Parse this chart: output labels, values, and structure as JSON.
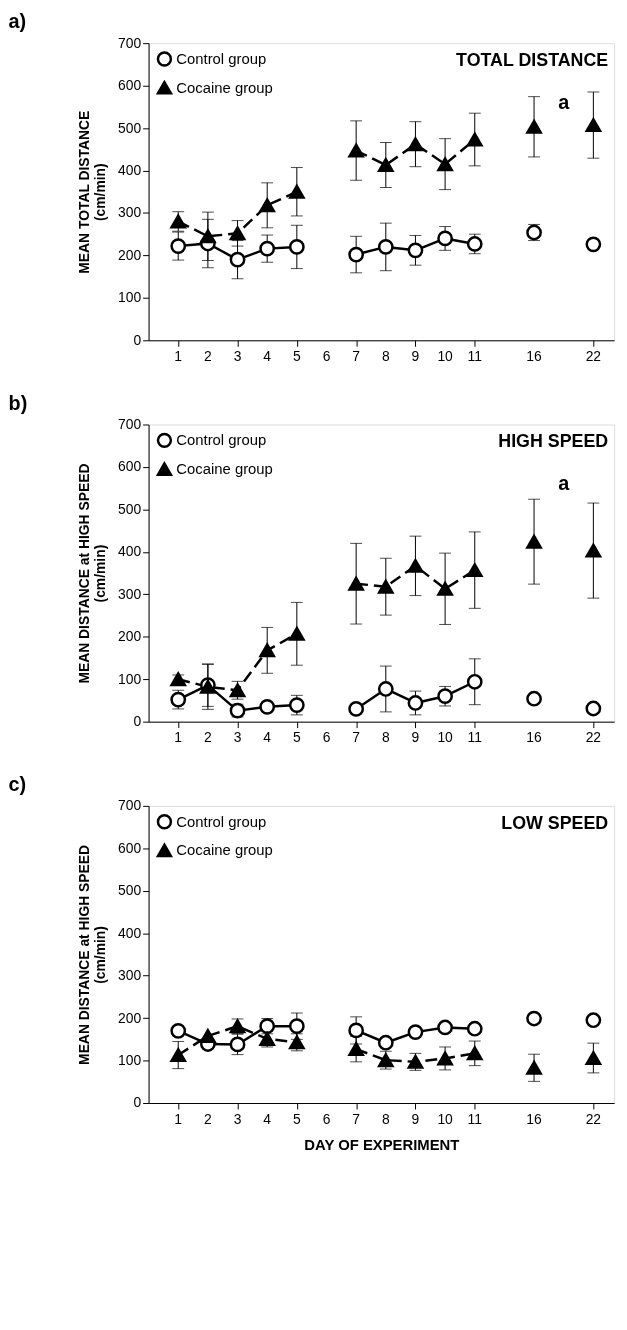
{
  "chart_data": [
    {
      "type": "line",
      "title": "a)",
      "ylabel": "MEAN TOTAL DISTANCE\n(cm/min)",
      "categories": [
        "1",
        "2",
        "3",
        "4",
        "5",
        "6",
        "7",
        "8",
        "9",
        "10",
        "11",
        null,
        "16",
        null,
        "22"
      ],
      "ylim": [
        0,
        700
      ],
      "yticks": [
        0,
        100,
        200,
        300,
        400,
        500,
        600,
        700
      ],
      "legend": "top left",
      "annotations": [
        "TOTAL DISTANCE",
        "a"
      ],
      "series": [
        {
          "name": "Control group",
          "color": "#000000",
          "marker": "circle",
          "line_style": "solid",
          "values": [
            222,
            228,
            190,
            216,
            220,
            null,
            202,
            220,
            212,
            240,
            227,
            null,
            254,
            null,
            226
          ],
          "errors": [
            33,
            57,
            45,
            32,
            51,
            null,
            43,
            56,
            35,
            28,
            23,
            null,
            19,
            null,
            null
          ]
        },
        {
          "name": "Cocaine group",
          "color": "#000000",
          "marker": "triangle",
          "line_style": "dashed",
          "values": [
            280,
            245,
            252,
            318,
            350,
            null,
            447,
            413,
            462,
            415,
            473,
            null,
            503,
            null,
            507
          ],
          "errors": [
            23,
            57,
            30,
            53,
            57,
            null,
            70,
            53,
            53,
            60,
            62,
            null,
            71,
            null,
            78
          ]
        }
      ]
    },
    {
      "type": "line",
      "title": "b)",
      "ylabel": "MEAN DISTANCE at HIGH SPEED\n(cm/min)",
      "categories": [
        "1",
        "2",
        "3",
        "4",
        "5",
        "6",
        "7",
        "8",
        "9",
        "10",
        "11",
        null,
        "16",
        null,
        "22"
      ],
      "ylim": [
        0,
        700
      ],
      "yticks": [
        0,
        100,
        200,
        300,
        400,
        500,
        600,
        700
      ],
      "legend": "top left",
      "annotations": [
        "HIGH SPEED",
        "a"
      ],
      "series": [
        {
          "name": "Control group",
          "color": "#000000",
          "marker": "circle",
          "line_style": "solid",
          "values": [
            52,
            86,
            26,
            35,
            39,
            null,
            30,
            77,
            44,
            60,
            94,
            null,
            54,
            null,
            31
          ],
          "errors": [
            22,
            50,
            15,
            8,
            23,
            null,
            null,
            54,
            28,
            23,
            54,
            null,
            null,
            null,
            null
          ]
        },
        {
          "name": "Cocaine group",
          "color": "#000000",
          "marker": "triangle",
          "line_style": "dashed",
          "values": [
            100,
            82,
            74,
            168,
            207,
            null,
            325,
            318,
            367,
            313,
            357,
            null,
            424,
            null,
            403
          ],
          "errors": [
            10,
            53,
            21,
            54,
            74,
            null,
            95,
            67,
            70,
            84,
            90,
            null,
            100,
            null,
            112
          ]
        }
      ]
    },
    {
      "type": "line",
      "title": "c)",
      "ylabel": "MEAN DISTANCE at HIGH SPEED\n(cm/min)",
      "xlabel": "DAY OF EXPERIMENT",
      "categories": [
        "1",
        "2",
        "3",
        "4",
        "5",
        "6",
        "7",
        "8",
        "9",
        "10",
        "11",
        null,
        "16",
        null,
        "22"
      ],
      "ylim": [
        0,
        700
      ],
      "yticks": [
        0,
        100,
        200,
        300,
        400,
        500,
        600,
        700
      ],
      "legend": "top left",
      "annotations": [
        "LOW SPEED"
      ],
      "series": [
        {
          "name": "Control group",
          "color": "#000000",
          "marker": "circle",
          "line_style": "solid",
          "values": [
            170,
            139,
            138,
            181,
            181,
            null,
            171,
            142,
            167,
            178,
            175,
            null,
            199,
            null,
            195
          ],
          "errors": [
            null,
            null,
            24,
            18,
            31,
            null,
            32,
            null,
            null,
            null,
            null,
            null,
            null,
            null,
            null
          ]
        },
        {
          "name": "Cocaine group",
          "color": "#000000",
          "marker": "triangle",
          "line_style": "dashed",
          "values": [
            113,
            158,
            181,
            151,
            143,
            null,
            127,
            101,
            97,
            105,
            117,
            null,
            83,
            null,
            106
          ],
          "errors": [
            32,
            null,
            17,
            19,
            20,
            null,
            30,
            21,
            20,
            27,
            29,
            null,
            32,
            null,
            35
          ]
        }
      ]
    }
  ]
}
